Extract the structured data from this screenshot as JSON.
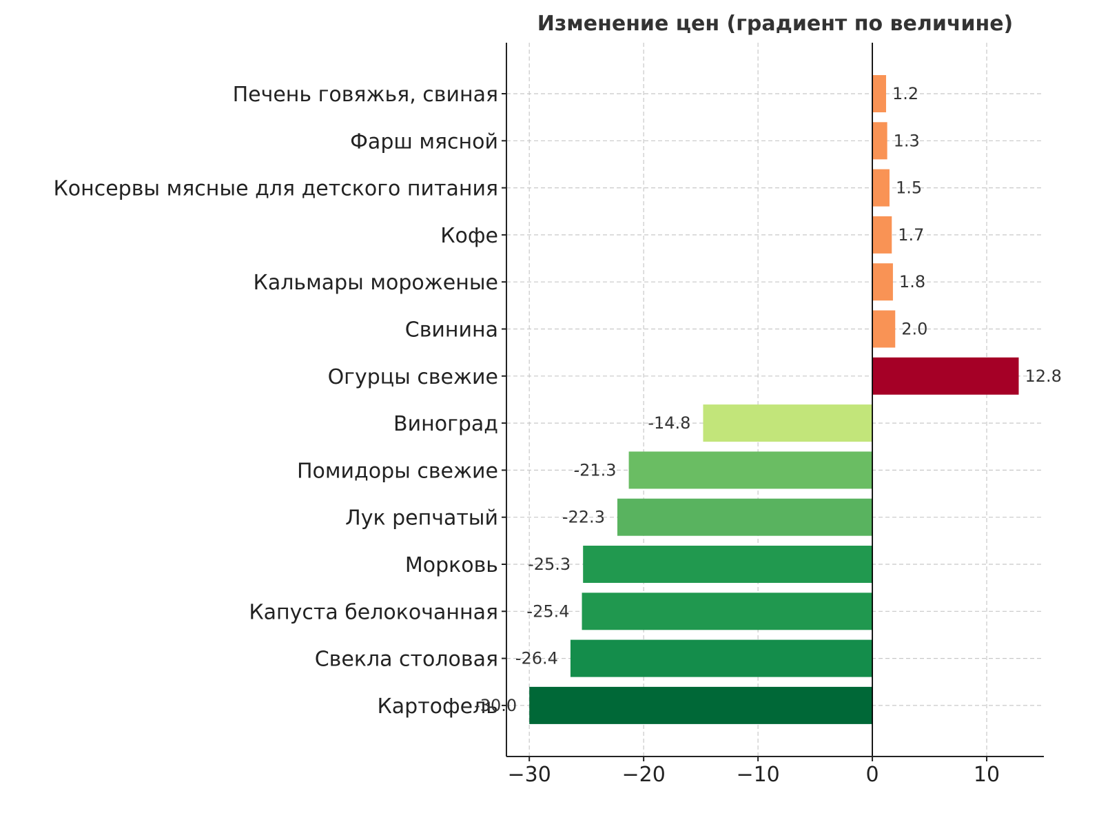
{
  "chart_data": {
    "type": "bar",
    "orientation": "horizontal",
    "title": "Изменение цен (градиент по величине)",
    "xlabel": "",
    "ylabel": "",
    "xlim": [
      -32,
      15
    ],
    "x_ticks": [
      -30,
      -20,
      -10,
      0,
      10
    ],
    "x_tick_labels": [
      "−30",
      "−20",
      "−10",
      "0",
      "10"
    ],
    "grid": true,
    "categories": [
      "Печень говяжья, свиная",
      "Фарш мясной",
      "Консервы мясные для детского питания",
      "Кофе",
      "Кальмары мороженые",
      "Свинина",
      "Огурцы свежие",
      "Виноград",
      "Помидоры свежие",
      "Лук репчатый",
      "Морковь",
      "Капуста белокочанная",
      "Свекла столовая",
      "Картофель"
    ],
    "values": [
      1.2,
      1.3,
      1.5,
      1.7,
      1.8,
      2.0,
      12.8,
      -14.8,
      -21.3,
      -22.3,
      -25.3,
      -25.4,
      -26.4,
      -30.0
    ],
    "value_labels": [
      "1.2",
      "1.3",
      "1.5",
      "1.7",
      "1.8",
      "2.0",
      "12.8",
      "-14.8",
      "-21.3",
      "-22.3",
      "-25.3",
      "-25.4",
      "-26.4",
      "-30.0"
    ],
    "colors": [
      "#f99355",
      "#f99355",
      "#f99355",
      "#f99355",
      "#f99355",
      "#f99355",
      "#a50026",
      "#c2e57a",
      "#6abd63",
      "#59b35f",
      "#21994f",
      "#20984f",
      "#148d4b",
      "#006837"
    ]
  }
}
